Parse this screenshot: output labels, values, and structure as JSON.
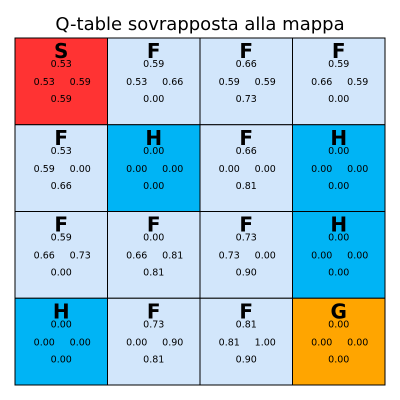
{
  "chart_data": {
    "type": "heatmap",
    "title": "Q-table sovrapposta alla mappa",
    "grid": {
      "rows": 4,
      "cols": 4
    },
    "colors": {
      "S": "#ff3333",
      "F": "#d2e6fb",
      "H": "#00b4f5",
      "G": "#ffa500",
      "border": "#000000"
    },
    "cells": [
      {
        "label": "S",
        "q": {
          "up": "0.53",
          "left": "0.53",
          "right": "0.59",
          "down": "0.59"
        }
      },
      {
        "label": "F",
        "q": {
          "up": "0.59",
          "left": "0.53",
          "right": "0.66",
          "down": "0.00"
        }
      },
      {
        "label": "F",
        "q": {
          "up": "0.66",
          "left": "0.59",
          "right": "0.59",
          "down": "0.73"
        }
      },
      {
        "label": "F",
        "q": {
          "up": "0.59",
          "left": "0.66",
          "right": "0.59",
          "down": "0.00"
        }
      },
      {
        "label": "F",
        "q": {
          "up": "0.53",
          "left": "0.59",
          "right": "0.00",
          "down": "0.66"
        }
      },
      {
        "label": "H",
        "q": {
          "up": "0.00",
          "left": "0.00",
          "right": "0.00",
          "down": "0.00"
        }
      },
      {
        "label": "F",
        "q": {
          "up": "0.66",
          "left": "0.00",
          "right": "0.00",
          "down": "0.81"
        }
      },
      {
        "label": "H",
        "q": {
          "up": "0.00",
          "left": "0.00",
          "right": "0.00",
          "down": "0.00"
        }
      },
      {
        "label": "F",
        "q": {
          "up": "0.59",
          "left": "0.66",
          "right": "0.73",
          "down": "0.00"
        }
      },
      {
        "label": "F",
        "q": {
          "up": "0.00",
          "left": "0.66",
          "right": "0.81",
          "down": "0.81"
        }
      },
      {
        "label": "F",
        "q": {
          "up": "0.73",
          "left": "0.73",
          "right": "0.00",
          "down": "0.90"
        }
      },
      {
        "label": "H",
        "q": {
          "up": "0.00",
          "left": "0.00",
          "right": "0.00",
          "down": "0.00"
        }
      },
      {
        "label": "H",
        "q": {
          "up": "0.00",
          "left": "0.00",
          "right": "0.00",
          "down": "0.00"
        }
      },
      {
        "label": "F",
        "q": {
          "up": "0.73",
          "left": "0.00",
          "right": "0.90",
          "down": "0.81"
        }
      },
      {
        "label": "F",
        "q": {
          "up": "0.81",
          "left": "0.81",
          "right": "1.00",
          "down": "0.90"
        }
      },
      {
        "label": "G",
        "q": {
          "up": "0.00",
          "left": "0.00",
          "right": "0.00",
          "down": "0.00"
        }
      }
    ]
  }
}
